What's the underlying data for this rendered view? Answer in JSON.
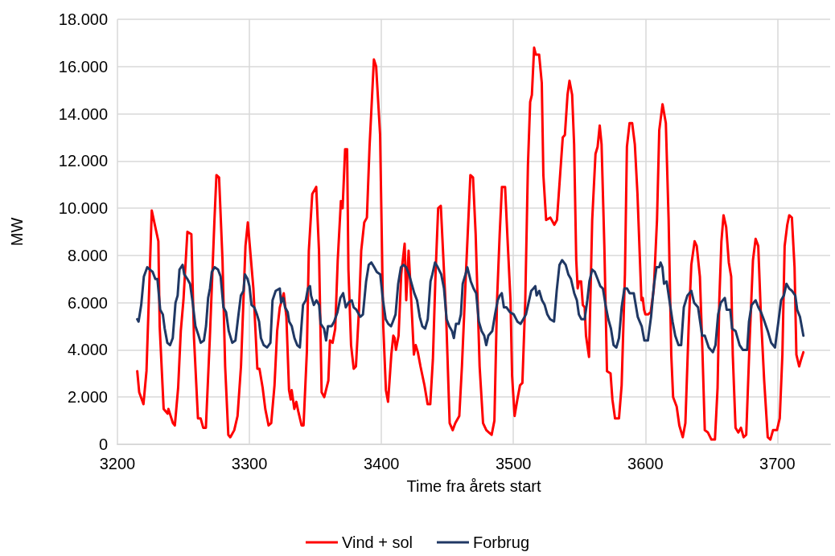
{
  "chart_data": {
    "type": "line",
    "xlabel": "Time fra årets start",
    "ylabel": "MW",
    "xlim": [
      3200,
      3740
    ],
    "xticks": [
      3200,
      3300,
      3400,
      3500,
      3600,
      3700
    ],
    "ylim": [
      0,
      18000
    ],
    "yticks": [
      {
        "value": 0,
        "label": "0"
      },
      {
        "value": 2000,
        "label": "2.000"
      },
      {
        "value": 4000,
        "label": "4.000"
      },
      {
        "value": 6000,
        "label": "6.000"
      },
      {
        "value": 8000,
        "label": "8.000"
      },
      {
        "value": 10000,
        "label": "10.000"
      },
      {
        "value": 12000,
        "label": "12.000"
      },
      {
        "value": 14000,
        "label": "14.000"
      },
      {
        "value": 16000,
        "label": "16.000"
      },
      {
        "value": 18000,
        "label": "18.000"
      }
    ],
    "grid": true,
    "legend": "bottom",
    "marker": "none",
    "line_style": "solid",
    "series": [
      {
        "name": "Vind + sol",
        "color": "#ff0000",
        "x": [
          3215,
          3216.5,
          3219.7,
          3222,
          3226,
          3231,
          3232,
          3235,
          3238,
          3238.6,
          3242,
          3243.5,
          3246,
          3248,
          3250,
          3253,
          3256,
          3258,
          3261,
          3263,
          3265,
          3267,
          3270,
          3273.5,
          3275,
          3277,
          3279.6,
          3281.6,
          3284,
          3285.5,
          3288.5,
          3291,
          3293.6,
          3297,
          3298.8,
          3300,
          3303,
          3306,
          3307.6,
          3310,
          3312,
          3314.5,
          3316.5,
          3319,
          3321,
          3323,
          3326,
          3328,
          3330,
          3331.3,
          3332,
          3334,
          3335.5,
          3337,
          3339.5,
          3341,
          3343.5,
          3345,
          3347.6,
          3350.6,
          3352.7,
          3354.7,
          3356.7,
          3359.8,
          3361,
          3363,
          3365,
          3366.9,
          3369.3,
          3370.6,
          3372.5,
          3374,
          3375,
          3377,
          3379,
          3380.7,
          3383,
          3384.7,
          3387,
          3389,
          3391,
          3394.3,
          3396,
          3399,
          3401.4,
          3403.4,
          3405,
          3405.8,
          3407.5,
          3409,
          3410,
          3411,
          3413,
          3415,
          3417.6,
          3418.8,
          3420.6,
          3422.6,
          3424.6,
          3426,
          3427.6,
          3429.6,
          3432.6,
          3435,
          3437,
          3439,
          3441,
          3443,
          3445,
          3447,
          3449,
          3451.7,
          3454,
          3456,
          3459,
          3461,
          3464,
          3467.4,
          3469.4,
          3471.4,
          3474.4,
          3477,
          3479.5,
          3481.5,
          3483.5,
          3485.6,
          3487.6,
          3489.6,
          3491.3,
          3493.7,
          3495.8,
          3497.8,
          3499,
          3500.9,
          3503,
          3505,
          3506.8,
          3509,
          3511,
          3512.7,
          3514,
          3515.7,
          3517,
          3519.5,
          3521.5,
          3522.7,
          3524.8,
          3528,
          3531,
          3533,
          3535,
          3537.4,
          3539,
          3541,
          3542.5,
          3544.5,
          3546,
          3547.6,
          3548.7,
          3549.7,
          3551.3,
          3552.6,
          3554,
          3555,
          3557.3,
          3559.7,
          3562.2,
          3563.8,
          3565.4,
          3566.8,
          3568.9,
          3570.9,
          3573.6,
          3575,
          3577,
          3580,
          3582,
          3584.5,
          3586,
          3588,
          3590,
          3592,
          3594,
          3597,
          3598,
          3599,
          3600,
          3602,
          3604,
          3606.4,
          3608.8,
          3610.5,
          3613,
          3615.5,
          3617.6,
          3619.6,
          3621,
          3623.7,
          3625.7,
          3628.3,
          3630.3,
          3632.8,
          3634.8,
          3637.3,
          3638.9,
          3641.3,
          3643.3,
          3645,
          3647.4,
          3650,
          3652.7,
          3654.7,
          3656,
          3657.6,
          3659.2,
          3661.2,
          3663.2,
          3665,
          3666.2,
          3668.3,
          3670.4,
          3672.4,
          3674.4,
          3676.4,
          3679,
          3681.5,
          3683.5,
          3685.5,
          3687.5,
          3690,
          3692.7,
          3694.7,
          3696.7,
          3699.7,
          3701.8,
          3703.8,
          3705.5,
          3707.5,
          3709,
          3711,
          3713,
          3714.4,
          3716.5,
          3718,
          3719.7
        ],
        "values": [
          3100,
          2200,
          1700,
          3100,
          9900,
          8600,
          5000,
          1500,
          1300,
          1500,
          900,
          800,
          2400,
          4800,
          6100,
          9000,
          8900,
          4500,
          1100,
          1100,
          700,
          700,
          4500,
          9500,
          11400,
          11300,
          7800,
          3300,
          400,
          300,
          600,
          1200,
          3300,
          8400,
          9400,
          8600,
          6600,
          3200,
          3200,
          2400,
          1500,
          800,
          900,
          2500,
          4800,
          5800,
          6400,
          5400,
          2300,
          1900,
          2300,
          1500,
          1800,
          1400,
          800,
          800,
          3900,
          8200,
          10600,
          10900,
          8200,
          2200,
          2000,
          2700,
          4400,
          4300,
          4900,
          7800,
          10300,
          10000,
          12500,
          12500,
          7400,
          4200,
          3200,
          3300,
          5700,
          8200,
          9400,
          9600,
          12600,
          16300,
          16000,
          13100,
          5000,
          2300,
          1800,
          2400,
          3800,
          4600,
          4500,
          4000,
          4600,
          7200,
          8500,
          6100,
          8200,
          6100,
          3800,
          4200,
          3900,
          3300,
          2500,
          1700,
          1700,
          3600,
          7200,
          10000,
          10100,
          7800,
          5500,
          900,
          600,
          900,
          1200,
          3300,
          7200,
          11400,
          11300,
          8900,
          3300,
          900,
          600,
          500,
          400,
          1000,
          6100,
          8900,
          10900,
          10900,
          8400,
          6100,
          2900,
          1200,
          1900,
          2500,
          2600,
          6100,
          11800,
          14500,
          14800,
          16800,
          16500,
          16500,
          15300,
          11400,
          9500,
          9600,
          9300,
          9500,
          11100,
          13000,
          13100,
          14800,
          15400,
          14800,
          12700,
          7800,
          6600,
          6900,
          6900,
          5900,
          5800,
          4600,
          3700,
          9500,
          12300,
          12600,
          13500,
          12700,
          8400,
          3100,
          3000,
          1900,
          1100,
          1100,
          2500,
          7200,
          12600,
          13600,
          13600,
          12700,
          10600,
          6100,
          6200,
          5700,
          5500,
          5500,
          5600,
          6600,
          9500,
          13300,
          14400,
          13600,
          9500,
          3800,
          2000,
          1600,
          800,
          300,
          900,
          5000,
          7600,
          8600,
          8400,
          7100,
          3800,
          600,
          500,
          200,
          200,
          2400,
          6100,
          8600,
          9700,
          9200,
          7700,
          7100,
          3800,
          700,
          500,
          700,
          300,
          400,
          4400,
          7800,
          8700,
          8400,
          5500,
          2700,
          300,
          200,
          600,
          600,
          1100,
          3800,
          8400,
          9300,
          9700,
          9600,
          7500,
          3800,
          3300,
          3600,
          3900
        ]
      },
      {
        "name": "Forbrug",
        "color": "#203864",
        "x": [
          3215,
          3216,
          3218,
          3220,
          3222.6,
          3224.6,
          3226.7,
          3228.7,
          3230.3,
          3232.4,
          3234.4,
          3235.8,
          3237.8,
          3239.9,
          3241.9,
          3244,
          3245.6,
          3247,
          3249.4,
          3250.6,
          3253,
          3255,
          3257,
          3259.1,
          3261.5,
          3263.1,
          3265.5,
          3267.1,
          3268.7,
          3270.1,
          3271.5,
          3273.6,
          3276.2,
          3278.2,
          3280.3,
          3282.3,
          3284.3,
          3287,
          3289.4,
          3291.5,
          3293.5,
          3295.5,
          3296.6,
          3298.6,
          3300,
          3301.6,
          3303.7,
          3305.7,
          3307.3,
          3308.7,
          3310.8,
          3313.4,
          3315.9,
          3317.5,
          3319.9,
          3323,
          3324,
          3325.6,
          3327,
          3329,
          3330.1,
          3332.1,
          3334.1,
          3336.2,
          3338.2,
          3340.6,
          3342.7,
          3344.3,
          3345.9,
          3346.7,
          3348.8,
          3350.8,
          3352.8,
          3354,
          3356.5,
          3358.1,
          3359.5,
          3362.2,
          3364.2,
          3366.7,
          3368.9,
          3371,
          3373,
          3375,
          3377.5,
          3379,
          3381,
          3384,
          3386,
          3388.4,
          3390.4,
          3392.4,
          3394.5,
          3396.5,
          3399.1,
          3401.2,
          3403.2,
          3405.2,
          3407.3,
          3408.7,
          3410.7,
          3412.7,
          3414.8,
          3416.8,
          3418.8,
          3420.9,
          3422.9,
          3424.9,
          3427,
          3429,
          3431,
          3433.1,
          3435.1,
          3437.2,
          3438.6,
          3440.6,
          3442.7,
          3445.3,
          3447.4,
          3449.4,
          3451.4,
          3453.5,
          3454.9,
          3456.5,
          3458.6,
          3460.2,
          3461.6,
          3463.7,
          3465.1,
          3467.7,
          3469.8,
          3471.8,
          3473.8,
          3475.9,
          3477.9,
          3479.4,
          3481,
          3484,
          3486.1,
          3488.1,
          3489.7,
          3491.2,
          3492.8,
          3494.8,
          3497.3,
          3500.3,
          3503,
          3505.4,
          3507.5,
          3509.5,
          3511.5,
          3513.5,
          3515.2,
          3516.6,
          3517.6,
          3519.6,
          3521.7,
          3523.7,
          3525.7,
          3527.8,
          3530.8,
          3532.8,
          3534.9,
          3536.9,
          3539.6,
          3541.6,
          3543.6,
          3546.1,
          3548.1,
          3549.6,
          3551.5,
          3554,
          3556,
          3557.6,
          3559.7,
          3561.7,
          3563.8,
          3565.8,
          3567.8,
          3569.8,
          3571.9,
          3573.9,
          3575.9,
          3578,
          3580,
          3582,
          3584.1,
          3586.1,
          3588.1,
          3591.2,
          3594.2,
          3597.2,
          3599.2,
          3601.9,
          3604.3,
          3606.4,
          3608.4,
          3610.5,
          3611.5,
          3612.9,
          3614.1,
          3616.1,
          3618.2,
          3620.6,
          3622.6,
          3625.1,
          3627.1,
          3629.1,
          3631.8,
          3634.8,
          3636.9,
          3639.9,
          3643,
          3645,
          3648,
          3651.1,
          3653.1,
          3655.1,
          3657.1,
          3660.2,
          3661.6,
          3664.3,
          3665.7,
          3668.3,
          3671.4,
          3673.8,
          3677.1,
          3678.5,
          3680.5,
          3683.5,
          3685.6,
          3687.6,
          3689.6,
          3692.7,
          3695.3,
          3698.2,
          3700.8,
          3702.8,
          3704.9,
          3706.9,
          3708.9,
          3711,
          3713.6,
          3715,
          3717.1,
          3719.7
        ],
        "values": [
          5300,
          5200,
          5900,
          7100,
          7500,
          7400,
          7300,
          7000,
          7000,
          5700,
          5500,
          4900,
          4300,
          4200,
          4500,
          6000,
          6300,
          7400,
          7600,
          7200,
          7000,
          6800,
          6000,
          5000,
          4600,
          4300,
          4400,
          5000,
          6200,
          6600,
          7300,
          7500,
          7400,
          7100,
          5800,
          5600,
          4800,
          4300,
          4400,
          5400,
          6300,
          6500,
          7200,
          7000,
          6700,
          5900,
          5800,
          5500,
          5200,
          4500,
          4200,
          4100,
          4300,
          6100,
          6500,
          6600,
          6000,
          6200,
          5800,
          5600,
          5200,
          5000,
          4500,
          4200,
          4100,
          5900,
          6100,
          6600,
          6700,
          6300,
          5900,
          6100,
          5900,
          5100,
          4900,
          4400,
          5000,
          5000,
          5200,
          5600,
          6200,
          6400,
          5800,
          6000,
          6100,
          5800,
          5700,
          5400,
          5500,
          6900,
          7600,
          7700,
          7500,
          7300,
          7200,
          6100,
          5300,
          5100,
          5000,
          5200,
          5500,
          6800,
          7500,
          7600,
          7500,
          7200,
          6800,
          6400,
          6100,
          5400,
          5000,
          4900,
          5300,
          6900,
          7200,
          7700,
          7500,
          7200,
          6600,
          5300,
          5000,
          4800,
          4500,
          5100,
          5100,
          5500,
          6800,
          7200,
          7500,
          6900,
          6600,
          6400,
          5200,
          4800,
          4600,
          4200,
          4600,
          4800,
          5500,
          6100,
          6300,
          6400,
          5800,
          5800,
          5600,
          5500,
          5200,
          5100,
          5300,
          5500,
          6000,
          6500,
          6600,
          6700,
          6300,
          6500,
          6100,
          5900,
          5500,
          5300,
          5200,
          6500,
          7600,
          7800,
          7600,
          7200,
          7000,
          6400,
          6100,
          5500,
          5300,
          5300,
          6100,
          6900,
          7400,
          7300,
          7000,
          6700,
          6600,
          5900,
          5300,
          4900,
          4200,
          4100,
          4500,
          5800,
          6600,
          6600,
          6400,
          6400,
          5400,
          5000,
          4400,
          4400,
          5400,
          6700,
          7500,
          7500,
          7700,
          7500,
          6800,
          6900,
          6100,
          5200,
          4600,
          4200,
          4200,
          5800,
          6300,
          6500,
          6000,
          5800,
          4600,
          4600,
          4100,
          3900,
          4200,
          5500,
          6000,
          6200,
          5700,
          5700,
          4900,
          4800,
          4200,
          4000,
          4000,
          5200,
          5900,
          6100,
          5800,
          5600,
          5300,
          4800,
          4300,
          4100,
          5200,
          6100,
          6300,
          6800,
          6600,
          6500,
          6300,
          5700,
          5400,
          4600
        ]
      }
    ]
  }
}
